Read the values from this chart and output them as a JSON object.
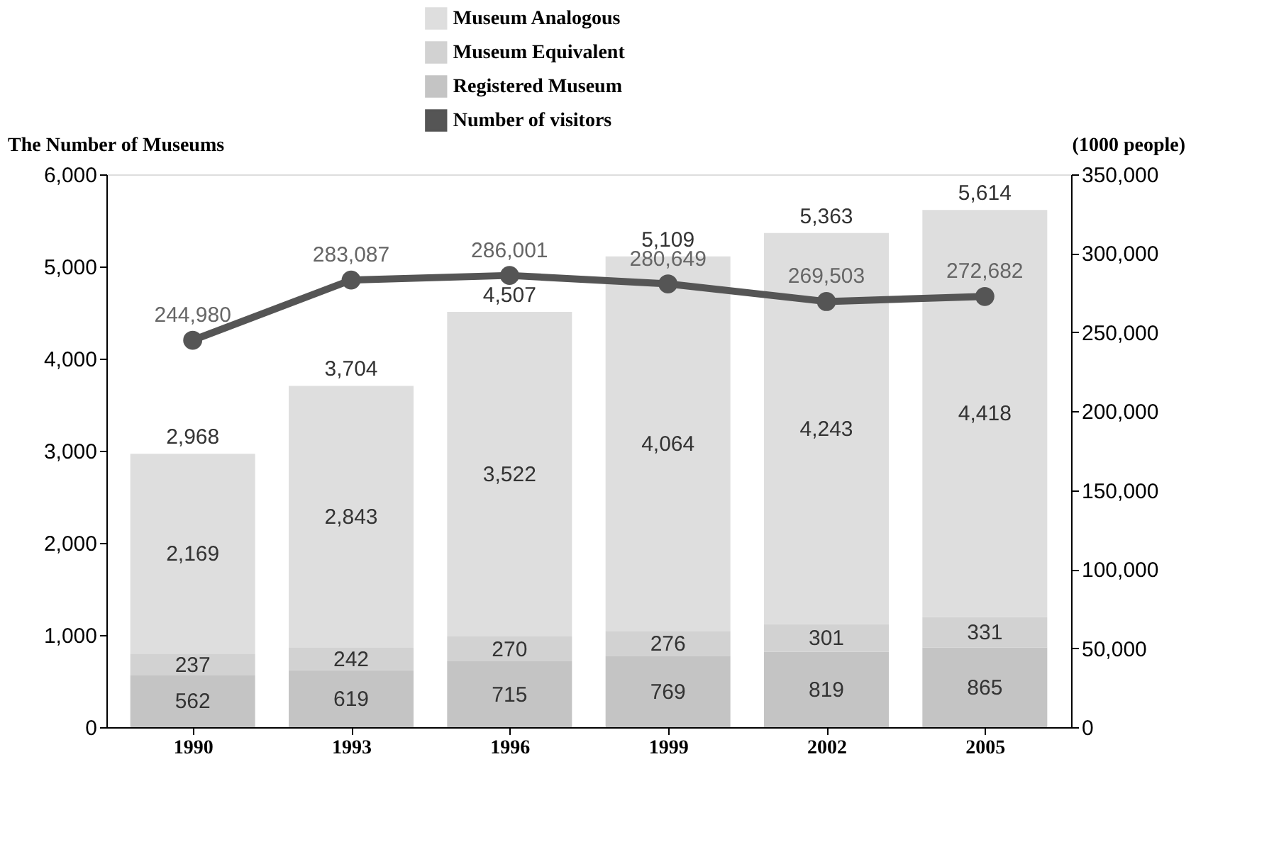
{
  "chart_data": {
    "type": "bar",
    "stacked": true,
    "categories": [
      "1990",
      "1993",
      "1996",
      "1999",
      "2002",
      "2005"
    ],
    "ylabel": "The Number of Museums",
    "y2label": "(1000 people)",
    "ylim": [
      0,
      6000
    ],
    "yticks": [
      0,
      {
        "value": 1000,
        "label": "1,000"
      },
      {
        "value": 2000,
        "label": "2,000"
      },
      {
        "value": 3000,
        "label": "3,000"
      },
      {
        "value": 4000,
        "label": "4,000"
      },
      {
        "value": 5000,
        "label": "5,000"
      },
      {
        "value": 6000,
        "label": "6,000"
      }
    ],
    "y2lim": [
      0,
      350000
    ],
    "y2ticks": [
      0,
      {
        "value": 50000,
        "label": "50,000"
      },
      {
        "value": 100000,
        "label": "100,000"
      },
      {
        "value": 150000,
        "label": "150,000"
      },
      {
        "value": 200000,
        "label": "200,000"
      },
      {
        "value": 250000,
        "label": "250,000"
      },
      {
        "value": 300000,
        "label": "300,000"
      },
      {
        "value": 350000,
        "label": "350,000"
      }
    ],
    "series": [
      {
        "name": "Registered Museum",
        "color": "#c4c4c4",
        "values": [
          562,
          619,
          715,
          769,
          819,
          865
        ],
        "value_labels": [
          "562",
          "619",
          "715",
          "769",
          "819",
          "865"
        ]
      },
      {
        "name": "Museum Equivalent",
        "color": "#d2d2d2",
        "values": [
          237,
          242,
          270,
          276,
          301,
          331
        ],
        "value_labels": [
          "237",
          "242",
          "270",
          "276",
          "301",
          "331"
        ]
      },
      {
        "name": "Museum Analogous",
        "color": "#dedede",
        "values": [
          2169,
          2843,
          3522,
          4064,
          4243,
          4418
        ],
        "value_labels": [
          "2,169",
          "2,843",
          "3,522",
          "4,064",
          "4,243",
          "4,418"
        ]
      },
      {
        "name": "Number of visitors",
        "type": "line",
        "axis": "y2",
        "color": "#555555",
        "marker": "circle",
        "values": [
          244980,
          283087,
          286001,
          280649,
          269503,
          272682
        ],
        "value_labels": [
          "244,980",
          "283,087",
          "286,001",
          "280,649",
          "269,503",
          "272,682"
        ]
      }
    ],
    "totals": [
      "2,968",
      "3,704",
      "4,507",
      "5,109",
      "5,363",
      "5,614"
    ],
    "legend": "top",
    "grid": false
  }
}
